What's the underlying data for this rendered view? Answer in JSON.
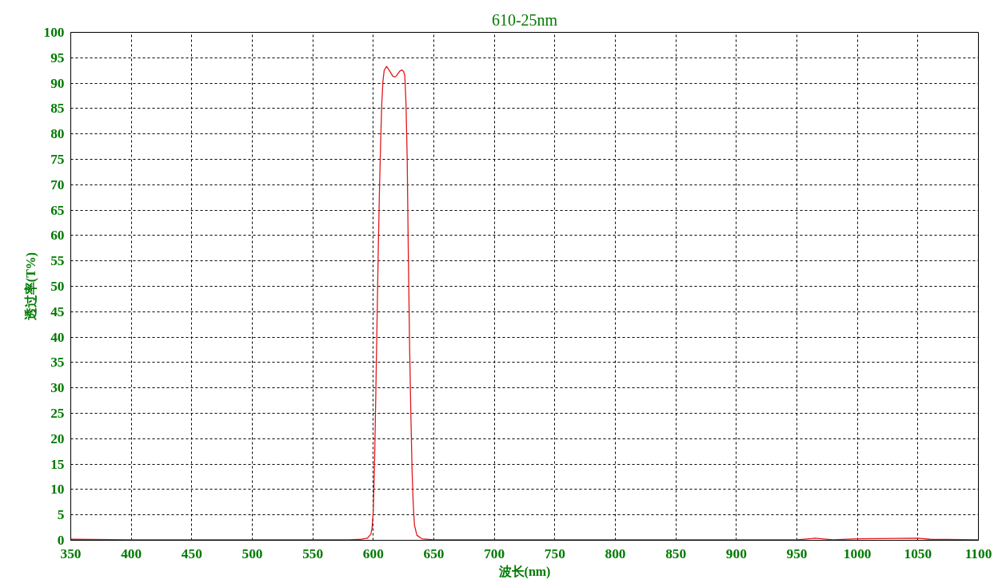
{
  "chart_data": {
    "type": "line",
    "title": "610-25nm",
    "xlabel": "波长(nm)",
    "ylabel": "透过率(T%)",
    "x": [
      350,
      400,
      450,
      500,
      550,
      580,
      590,
      595,
      598,
      599,
      600,
      601,
      602,
      603,
      604,
      605,
      606,
      607,
      608,
      609,
      611,
      613,
      616,
      617.6,
      619,
      622,
      623.6,
      625,
      626,
      627,
      628,
      629,
      630,
      631,
      632,
      633,
      634,
      636,
      640,
      650,
      700,
      800,
      900,
      950,
      965,
      980,
      1000,
      1050,
      1060,
      1100
    ],
    "series": [
      {
        "color": "#e0181e",
        "values": [
          0.2,
          0.1,
          0.1,
          0.1,
          0.1,
          0.1,
          0.2,
          0.4,
          1.2,
          2.5,
          6,
          15,
          28,
          42,
          56,
          68,
          78,
          86,
          90.5,
          92.5,
          93.3,
          92.6,
          91.4,
          91.2,
          91.4,
          92.4,
          92.6,
          92.3,
          91.5,
          86,
          75,
          55,
          38,
          25,
          14,
          7,
          3,
          1,
          0.3,
          0.1,
          0.1,
          0.1,
          0.1,
          0.1,
          0.4,
          0.1,
          0.3,
          0.4,
          0.2,
          0.1
        ]
      }
    ],
    "xlim": [
      350,
      1100
    ],
    "ylim": [
      0,
      100
    ],
    "xticks": [
      350,
      400,
      450,
      500,
      550,
      600,
      650,
      700,
      750,
      800,
      850,
      900,
      950,
      1000,
      1050,
      1100
    ],
    "yticks": [
      0,
      5,
      10,
      15,
      20,
      25,
      30,
      35,
      40,
      45,
      50,
      55,
      60,
      65,
      70,
      75,
      80,
      85,
      90,
      95,
      100
    ],
    "grid": true,
    "marker": "none",
    "line_style": "solid"
  }
}
